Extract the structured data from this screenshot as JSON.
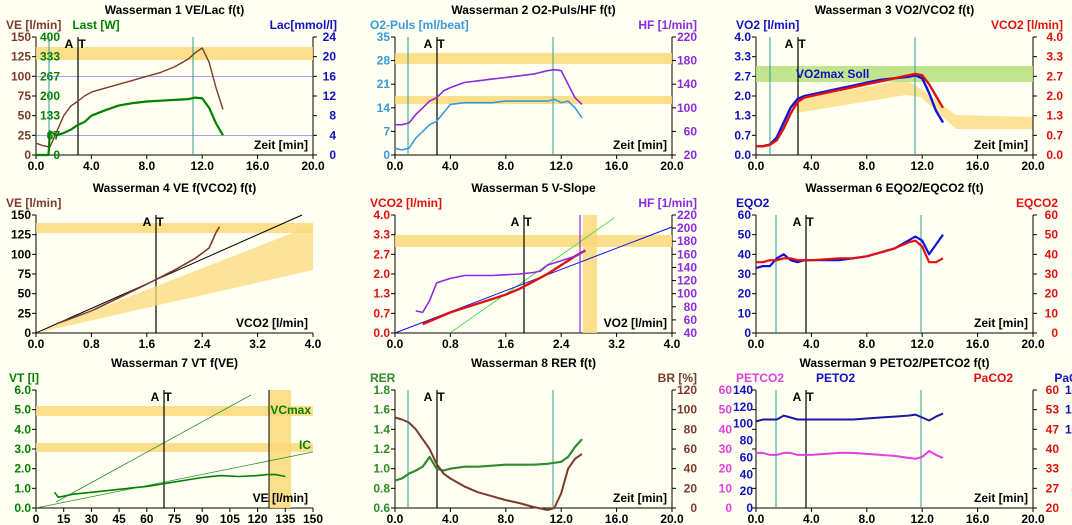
{
  "chart_data": [
    {
      "type": "line",
      "title": "Wasserman 1 VE/Lac f(t)",
      "xlabel": "Zeit [min]",
      "xlim": [
        0,
        20
      ],
      "xticks": [
        "0.0",
        "4.0",
        "8.0",
        "12.0",
        "16.0",
        "20.0"
      ],
      "ylabel_left": "VE [l/min]",
      "ylabel_left2": "Last [W]",
      "ylabel_right": "Lac[mmol/l]",
      "ylim": [
        0,
        150
      ],
      "yticks_left": [
        "0",
        "25",
        "50",
        "75",
        "100",
        "125",
        "150"
      ],
      "yticks_left2": [
        "0",
        "67",
        "133",
        "200",
        "267",
        "333",
        "400"
      ],
      "yticks_right": [
        "0",
        "4",
        "8",
        "12",
        "16",
        "20",
        "24"
      ],
      "markers": [
        "A",
        "T"
      ],
      "series": [
        {
          "name": "VE",
          "color": "#7a3b2e",
          "x": [
            0,
            0.5,
            1,
            1.5,
            2,
            2.5,
            3,
            3.5,
            4,
            5,
            6,
            7,
            8,
            9,
            10,
            11,
            11.5,
            12,
            12.5,
            13,
            13.5
          ],
          "y": [
            15,
            12,
            10,
            30,
            50,
            62,
            68,
            75,
            80,
            85,
            90,
            95,
            100,
            105,
            112,
            122,
            130,
            136,
            118,
            85,
            58
          ]
        },
        {
          "name": "Last",
          "color": "#008000",
          "x": [
            0,
            0.9,
            1,
            1.5,
            2,
            2.5,
            3,
            3.5,
            4,
            5,
            6,
            7,
            8,
            9,
            10,
            11,
            11.5,
            12,
            12.5,
            13,
            13.5
          ],
          "y": [
            0,
            0,
            30,
            25,
            28,
            32,
            38,
            42,
            50,
            57,
            63,
            66,
            68,
            69,
            70,
            71,
            73,
            72,
            60,
            40,
            25
          ]
        }
      ]
    },
    {
      "type": "line",
      "title": "Wasserman 2 O2-Puls/HF f(t)",
      "xlabel": "Zeit [min]",
      "xlim": [
        0,
        20
      ],
      "xticks": [
        "0.0",
        "4.0",
        "8.0",
        "12.0",
        "16.0",
        "20.0"
      ],
      "ylabel_left": "O2-Puls [ml/beat]",
      "ylabel_right": "HF [1/min]",
      "ylim": [
        0,
        35
      ],
      "yticks_left": [
        "0",
        "7",
        "14",
        "21",
        "28",
        "35"
      ],
      "yticks_right": [
        "20",
        "60",
        "100",
        "140",
        "180",
        "220"
      ],
      "markers": [
        "A",
        "T"
      ],
      "series": [
        {
          "name": "O2-Puls",
          "color": "#3a9ad9",
          "x": [
            0,
            0.5,
            1,
            1.5,
            2,
            2.5,
            3,
            3.5,
            4,
            5,
            6,
            7,
            8,
            9,
            10,
            11,
            11.5,
            12,
            12.5,
            13,
            13.5
          ],
          "y": [
            2,
            1.5,
            2,
            5,
            7,
            9,
            10,
            12.5,
            15,
            15.5,
            15.5,
            15.5,
            16,
            16,
            16,
            16,
            16.5,
            15.5,
            16,
            14,
            11
          ]
        },
        {
          "name": "HF",
          "color": "#8a2be2",
          "x": [
            0,
            0.5,
            1,
            1.5,
            2,
            2.5,
            3,
            3.5,
            4,
            5,
            6,
            7,
            8,
            9,
            10,
            11,
            11.5,
            12,
            12.5,
            13,
            13.5
          ],
          "y": [
            9,
            9,
            9.5,
            12,
            14,
            16,
            17,
            19,
            20,
            21.5,
            22,
            22.5,
            23,
            23.5,
            24,
            25,
            25.3,
            25,
            21,
            17,
            15
          ]
        }
      ]
    },
    {
      "type": "line",
      "title": "Wasserman 3 VO2/VCO2 f(t)",
      "xlabel": "Zeit [min]",
      "xlim": [
        0,
        20
      ],
      "xticks": [
        "0.0",
        "4.0",
        "8.0",
        "12.0",
        "16.0",
        "20.0"
      ],
      "ylabel_left": "VO2 [l/min]",
      "ylabel_right": "VCO2 [l/min]",
      "ylim": [
        0,
        4
      ],
      "yticks": [
        "0.0",
        "0.7",
        "1.3",
        "2.0",
        "2.7",
        "3.3",
        "4.0"
      ],
      "annotation": "VO2max Soll",
      "markers": [
        "A",
        "T"
      ],
      "series": [
        {
          "name": "VO2",
          "color": "#1010e0",
          "x": [
            0,
            0.5,
            1,
            1.5,
            2,
            2.5,
            3,
            3.5,
            4,
            5,
            6,
            7,
            8,
            9,
            10,
            11,
            11.5,
            12,
            12.5,
            13,
            13.5
          ],
          "y": [
            0.3,
            0.3,
            0.35,
            0.6,
            1.1,
            1.6,
            1.9,
            2.0,
            2.05,
            2.15,
            2.25,
            2.35,
            2.45,
            2.55,
            2.6,
            2.65,
            2.7,
            2.6,
            2.1,
            1.5,
            1.1
          ]
        },
        {
          "name": "VCO2",
          "color": "#e01010",
          "x": [
            0,
            0.5,
            1,
            1.5,
            2,
            2.5,
            3,
            3.5,
            4,
            5,
            6,
            7,
            8,
            9,
            10,
            11,
            11.5,
            12,
            12.5,
            13,
            13.5
          ],
          "y": [
            0.3,
            0.3,
            0.35,
            0.5,
            0.9,
            1.4,
            1.8,
            1.95,
            2.0,
            2.1,
            2.2,
            2.3,
            2.4,
            2.5,
            2.6,
            2.7,
            2.75,
            2.7,
            2.4,
            2.0,
            1.6
          ]
        }
      ]
    },
    {
      "type": "line",
      "title": "Wasserman 4 VE f(VCO2) f(t)",
      "xlabel": "VCO2 [l/min]",
      "xlim": [
        0,
        4
      ],
      "xticks": [
        "0.0",
        "0.8",
        "1.6",
        "2.4",
        "3.2",
        "4.0"
      ],
      "ylabel_left": "VE [l/min]",
      "ylim": [
        0,
        150
      ],
      "yticks_left": [
        "0",
        "25",
        "50",
        "75",
        "100",
        "125",
        "150"
      ],
      "markers": [
        "A",
        "T"
      ],
      "series": [
        {
          "name": "VE",
          "color": "#7a3b2e",
          "x": [
            0.3,
            0.5,
            0.8,
            1.2,
            1.6,
            2.0,
            2.3,
            2.5,
            2.55,
            2.6,
            2.65
          ],
          "y": [
            12,
            18,
            28,
            45,
            62,
            80,
            95,
            108,
            118,
            128,
            135
          ]
        }
      ]
    },
    {
      "type": "line",
      "title": "Wasserman 5 V-Slope",
      "xlabel": "VO2 [l/min]",
      "xlim": [
        0,
        4
      ],
      "xticks": [
        "0.0",
        "0.8",
        "1.6",
        "2.4",
        "3.2",
        "4.0"
      ],
      "ylabel_left": "VCO2 [l/min]",
      "ylabel_right": "HF [1/min]",
      "ylim": [
        0,
        4
      ],
      "yticks": [
        "0.0",
        "0.7",
        "1.3",
        "2.0",
        "2.7",
        "3.3",
        "4.0"
      ],
      "yticks_right": [
        "40",
        "60",
        "80",
        "100",
        "120",
        "140",
        "160",
        "180",
        "200",
        "220"
      ],
      "markers": [
        "A",
        "T"
      ],
      "series": [
        {
          "name": "VCO2",
          "color": "#e01010",
          "x": [
            0.4,
            0.6,
            0.8,
            1.0,
            1.2,
            1.4,
            1.6,
            1.8,
            2.0,
            2.2,
            2.4,
            2.6,
            2.75
          ],
          "y": [
            0.3,
            0.5,
            0.7,
            0.85,
            1.0,
            1.15,
            1.3,
            1.5,
            1.75,
            2.0,
            2.3,
            2.6,
            2.8
          ]
        },
        {
          "name": "HF",
          "color": "#8a2be2",
          "x": [
            0.3,
            0.4,
            0.5,
            0.6,
            0.8,
            1.0,
            1.4,
            1.8,
            2.0,
            2.1,
            2.2,
            2.4,
            2.6,
            2.75
          ],
          "y": [
            0.75,
            0.7,
            1.1,
            1.7,
            1.85,
            1.95,
            1.95,
            2.0,
            2.05,
            2.1,
            2.3,
            2.45,
            2.6,
            2.8
          ]
        }
      ]
    },
    {
      "type": "line",
      "title": "Wasserman 6 EQO2/EQCO2 f(t)",
      "xlabel": "Zeit [min]",
      "xlim": [
        0,
        20
      ],
      "xticks": [
        "0.0",
        "4.0",
        "8.0",
        "12.0",
        "16.0",
        "20.0"
      ],
      "ylabel_left": "EQO2",
      "ylabel_right": "EQCO2",
      "ylim": [
        0,
        60
      ],
      "yticks": [
        "0",
        "10",
        "20",
        "30",
        "40",
        "50",
        "60"
      ],
      "markers": [
        "A",
        "T"
      ],
      "series": [
        {
          "name": "EQO2",
          "color": "#1010e0",
          "x": [
            0,
            0.5,
            1,
            1.5,
            2,
            2.5,
            3,
            3.5,
            4,
            5,
            6,
            7,
            8,
            9,
            10,
            11,
            11.5,
            12,
            12.5,
            13,
            13.5
          ],
          "y": [
            33,
            34,
            34,
            38,
            40,
            37,
            36,
            37,
            37,
            37,
            37,
            38,
            39,
            41,
            43,
            47,
            49,
            47,
            40,
            45,
            50
          ]
        },
        {
          "name": "EQCO2",
          "color": "#e01010",
          "x": [
            0,
            0.5,
            1,
            1.5,
            2,
            2.5,
            3,
            3.5,
            4,
            5,
            6,
            7,
            8,
            9,
            10,
            11,
            11.5,
            12,
            12.5,
            13,
            13.5
          ],
          "y": [
            36,
            36,
            37,
            37,
            38,
            38,
            37,
            37,
            37,
            37.5,
            38,
            38,
            39,
            41,
            43,
            46,
            47,
            44,
            36,
            36,
            38
          ]
        }
      ]
    },
    {
      "type": "line",
      "title": "Wasserman 7 VT f(VE)",
      "xlabel": "VE [l/min]",
      "xlim": [
        0,
        150
      ],
      "xticks": [
        "0",
        "15",
        "30",
        "45",
        "60",
        "75",
        "90",
        "105",
        "120",
        "135",
        "150"
      ],
      "ylabel_left": "VT [l]",
      "ylim": [
        0,
        6
      ],
      "yticks": [
        "0.0",
        "1.0",
        "2.0",
        "3.0",
        "4.0",
        "5.0",
        "6.0"
      ],
      "annotations": [
        "VCmax",
        "IC"
      ],
      "markers": [
        "A",
        "T"
      ],
      "series": [
        {
          "name": "VT",
          "color": "#008000",
          "x": [
            10,
            12,
            15,
            20,
            30,
            45,
            60,
            70,
            80,
            90,
            100,
            110,
            120,
            125,
            130,
            135
          ],
          "y": [
            0.8,
            0.55,
            0.6,
            0.7,
            0.8,
            0.95,
            1.1,
            1.25,
            1.4,
            1.55,
            1.65,
            1.6,
            1.65,
            1.7,
            1.7,
            1.6
          ]
        }
      ]
    },
    {
      "type": "line",
      "title": "Wasserman 8 RER f(t)",
      "xlabel": "Zeit [min]",
      "xlim": [
        0,
        20
      ],
      "xticks": [
        "0.0",
        "4.0",
        "8.0",
        "12.0",
        "16.0",
        "20.0"
      ],
      "ylabel_left": "RER",
      "ylabel_right": "BR [%]",
      "ylim": [
        0.6,
        1.8
      ],
      "yticks": [
        "0.6",
        "0.8",
        "1.0",
        "1.2",
        "1.4",
        "1.6",
        "1.8"
      ],
      "yticks_right": [
        "0",
        "20",
        "40",
        "60",
        "80",
        "100",
        "120"
      ],
      "markers": [
        "A",
        "T"
      ],
      "series": [
        {
          "name": "RER",
          "color": "#2e8b2e",
          "x": [
            0,
            0.5,
            1,
            1.5,
            2,
            2.5,
            3,
            3.5,
            4,
            5,
            6,
            7,
            8,
            9,
            10,
            11,
            11.5,
            12,
            12.5,
            13,
            13.5
          ],
          "y": [
            0.88,
            0.9,
            0.95,
            0.98,
            1.02,
            1.12,
            1.0,
            0.98,
            1.0,
            1.02,
            1.02,
            1.03,
            1.04,
            1.04,
            1.04,
            1.05,
            1.06,
            1.07,
            1.12,
            1.22,
            1.3
          ]
        },
        {
          "name": "BR",
          "color": "#7a3b2e",
          "x": [
            0,
            0.5,
            1,
            1.5,
            2,
            2.5,
            3,
            3.5,
            4,
            5,
            6,
            7,
            8,
            9,
            10,
            11,
            11.5,
            12,
            12.5,
            13,
            13.5
          ],
          "y": [
            1.52,
            1.5,
            1.47,
            1.4,
            1.3,
            1.2,
            1.05,
            0.95,
            0.9,
            0.82,
            0.76,
            0.72,
            0.68,
            0.65,
            0.61,
            0.58,
            0.6,
            0.75,
            1.0,
            1.1,
            1.15
          ]
        }
      ]
    },
    {
      "type": "line",
      "title": "Wasserman 9 PETO2/PETCO2 f(t)",
      "xlabel": "Zeit [min]",
      "xlim": [
        0,
        20
      ],
      "xticks": [
        "0.0",
        "4.0",
        "8.0",
        "12.0",
        "16.0",
        "20.0"
      ],
      "ylabel_left": "PETCO2",
      "ylabel_left2": "PETO2",
      "ylabel_right": "PaCO2",
      "ylabel_right2": "PaO2",
      "ylim": [
        0,
        60
      ],
      "yticks_left": [
        "0",
        "10",
        "20",
        "30",
        "40",
        "50",
        "60"
      ],
      "yticks_left2": [
        "0",
        "20",
        "40",
        "60",
        "80",
        "100",
        "120",
        "140"
      ],
      "yticks_right": [
        "20",
        "27",
        "33",
        "40",
        "47",
        "53",
        "60"
      ],
      "yticks_right2": [
        "20",
        "40",
        "60",
        "80",
        "100",
        "120",
        "140"
      ],
      "markers": [
        "A",
        "T"
      ],
      "series": [
        {
          "name": "PETO2",
          "color": "#1a1aa0",
          "x": [
            0,
            0.5,
            1,
            1.5,
            2,
            2.5,
            3,
            3.5,
            4,
            5,
            6,
            7,
            8,
            9,
            10,
            11,
            11.5,
            12,
            12.5,
            13,
            13.5
          ],
          "y": [
            44,
            45,
            45,
            45,
            47,
            46,
            45,
            45,
            45,
            45,
            45,
            45,
            45.5,
            46,
            46.5,
            47,
            47.5,
            46,
            44.5,
            46.5,
            48
          ]
        },
        {
          "name": "PETCO2",
          "color": "#e040e0",
          "x": [
            0,
            0.5,
            1,
            1.5,
            2,
            2.5,
            3,
            3.5,
            4,
            5,
            6,
            7,
            8,
            9,
            10,
            11,
            11.5,
            12,
            12.5,
            13,
            13.5
          ],
          "y": [
            28,
            28,
            27,
            27,
            28,
            28,
            27,
            27,
            27,
            27.5,
            28,
            28,
            27.5,
            27,
            26.5,
            25.5,
            25,
            26,
            29,
            27,
            25.5
          ]
        }
      ]
    }
  ]
}
